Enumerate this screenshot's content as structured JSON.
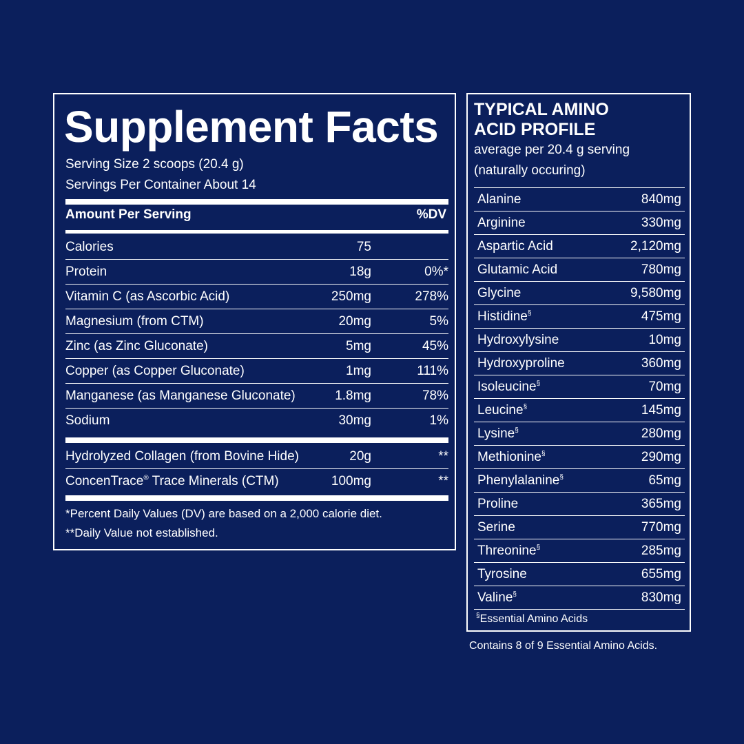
{
  "supplement_facts": {
    "title": "Supplement Facts",
    "serving_size": "Serving Size 2 scoops (20.4 g)",
    "servings_per_container": "Servings Per Container About 14",
    "amount_header": "Amount Per Serving",
    "dv_header": "%DV",
    "nutrients": [
      {
        "name": "Calories",
        "amount": "75",
        "dv": ""
      },
      {
        "name": "Protein",
        "amount": "18g",
        "dv": "0%*"
      },
      {
        "name": "Vitamin C (as Ascorbic Acid)",
        "amount": "250mg",
        "dv": "278%"
      },
      {
        "name": "Magnesium (from CTM)",
        "amount": "20mg",
        "dv": "5%"
      },
      {
        "name": "Zinc (as Zinc Gluconate)",
        "amount": "5mg",
        "dv": "45%"
      },
      {
        "name": "Copper (as Copper Gluconate)",
        "amount": "1mg",
        "dv": "111%"
      },
      {
        "name": "Manganese (as Manganese Gluconate)",
        "amount": "1.8mg",
        "dv": "78%"
      },
      {
        "name": "Sodium",
        "amount": "30mg",
        "dv": "1%"
      }
    ],
    "other_ingredients": [
      {
        "name": "Hydrolyzed Collagen (from Bovine Hide)",
        "sup": "",
        "name_suffix": "",
        "amount": "20g",
        "dv": "**"
      },
      {
        "name": "ConcenTrace",
        "sup": "®",
        "name_suffix": " Trace Minerals (CTM)",
        "amount": "100mg",
        "dv": "**"
      }
    ],
    "footnote_1": "*Percent Daily Values (DV) are based on a 2,000 calorie diet.",
    "footnote_2": "**Daily Value not established."
  },
  "amino_profile": {
    "title_line_1": "TYPICAL AMINO",
    "title_line_2": "ACID PROFILE",
    "subtitle_1": "average per 20.4 g serving",
    "subtitle_2": "(naturally occuring)",
    "essential_mark": "§",
    "rows": [
      {
        "name": "Alanine",
        "essential": false,
        "amount": "840mg"
      },
      {
        "name": "Arginine",
        "essential": false,
        "amount": "330mg"
      },
      {
        "name": "Aspartic Acid",
        "essential": false,
        "amount": "2,120mg"
      },
      {
        "name": "Glutamic Acid",
        "essential": false,
        "amount": "780mg"
      },
      {
        "name": "Glycine",
        "essential": false,
        "amount": "9,580mg"
      },
      {
        "name": "Histidine",
        "essential": true,
        "amount": "475mg"
      },
      {
        "name": "Hydroxylysine",
        "essential": false,
        "amount": "10mg"
      },
      {
        "name": "Hydroxyproline",
        "essential": false,
        "amount": "360mg"
      },
      {
        "name": "Isoleucine",
        "essential": true,
        "amount": "70mg"
      },
      {
        "name": "Leucine",
        "essential": true,
        "amount": "145mg"
      },
      {
        "name": "Lysine",
        "essential": true,
        "amount": "280mg"
      },
      {
        "name": "Methionine",
        "essential": true,
        "amount": "290mg"
      },
      {
        "name": "Phenylalanine",
        "essential": true,
        "amount": "65mg"
      },
      {
        "name": "Proline",
        "essential": false,
        "amount": "365mg"
      },
      {
        "name": "Serine",
        "essential": false,
        "amount": "770mg"
      },
      {
        "name": "Threonine",
        "essential": true,
        "amount": "285mg"
      },
      {
        "name": "Tyrosine",
        "essential": false,
        "amount": "655mg"
      },
      {
        "name": "Valine",
        "essential": true,
        "amount": "830mg"
      }
    ],
    "footnote_mark": "§",
    "footnote": "Essential Amino Acids",
    "contains_note": "Contains 8 of 9 Essential Amino Acids."
  },
  "colors": {
    "background": "#0b1f5c",
    "text": "#ffffff"
  }
}
